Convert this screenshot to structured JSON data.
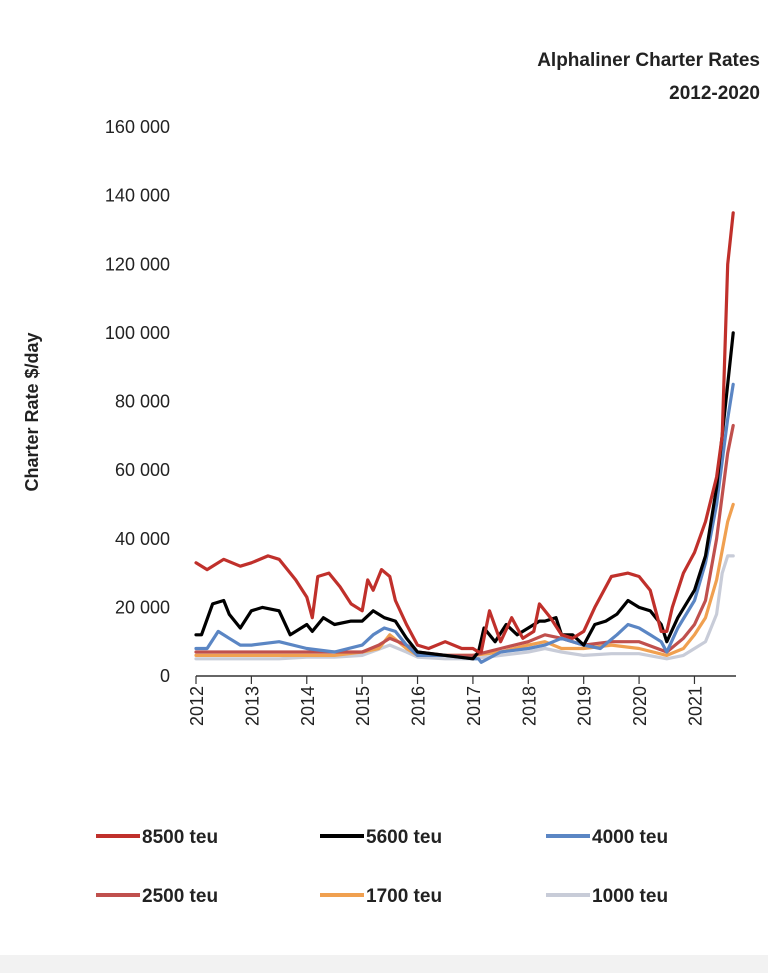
{
  "chart_data": {
    "type": "line",
    "title": [
      "Alphaliner Charter Rates",
      "2012-2020"
    ],
    "ylabel": "Charter Rate $/day",
    "xlabel": "",
    "ylim": [
      0,
      160000
    ],
    "xlim": [
      2012,
      2021.75
    ],
    "yticks": [
      {
        "value": 0,
        "label": "0"
      },
      {
        "value": 20000,
        "label": "20 000"
      },
      {
        "value": 40000,
        "label": "40 000"
      },
      {
        "value": 60000,
        "label": "60 000"
      },
      {
        "value": 80000,
        "label": "80 000"
      },
      {
        "value": 100000,
        "label": "100 000"
      },
      {
        "value": 120000,
        "label": "120 000"
      },
      {
        "value": 140000,
        "label": "140 000"
      },
      {
        "value": 160000,
        "label": "160 000"
      }
    ],
    "xticks": [
      "2012",
      "2013",
      "2014",
      "2015",
      "2016",
      "2017",
      "2018",
      "2019",
      "2020",
      "2021"
    ],
    "legend_placement": "bottom",
    "series": [
      {
        "name": "8500 teu",
        "color": "#c0302b",
        "x": [
          2012,
          2012.2,
          2012.5,
          2012.8,
          2013,
          2013.3,
          2013.5,
          2013.8,
          2014,
          2014.1,
          2014.2,
          2014.4,
          2014.6,
          2014.8,
          2015,
          2015.1,
          2015.2,
          2015.35,
          2015.5,
          2015.6,
          2015.8,
          2016,
          2016.2,
          2016.5,
          2016.8,
          2017,
          2017.1,
          2017.15,
          2017.3,
          2017.5,
          2017.7,
          2017.9,
          2018.1,
          2018.2,
          2018.4,
          2018.6,
          2018.8,
          2019,
          2019.2,
          2019.5,
          2019.8,
          2020,
          2020.2,
          2020.4,
          2020.5,
          2020.6,
          2020.8,
          2021,
          2021.2,
          2021.4,
          2021.5,
          2021.6,
          2021.7
        ],
        "values": [
          33000,
          31000,
          34000,
          32000,
          33000,
          35000,
          34000,
          28000,
          23000,
          17000,
          29000,
          30000,
          26000,
          21000,
          19000,
          28000,
          25000,
          31000,
          29000,
          22000,
          15000,
          9000,
          8000,
          10000,
          8000,
          8000,
          7000,
          7000,
          19000,
          10000,
          17000,
          11000,
          13000,
          21000,
          17000,
          12000,
          11000,
          13000,
          20000,
          29000,
          30000,
          29000,
          25000,
          13000,
          13000,
          20000,
          30000,
          36000,
          45000,
          58000,
          70000,
          120000,
          135000
        ]
      },
      {
        "name": "5600 teu",
        "color": "#000000",
        "x": [
          2012,
          2012.1,
          2012.3,
          2012.5,
          2012.6,
          2012.8,
          2013,
          2013.2,
          2013.5,
          2013.7,
          2014,
          2014.1,
          2014.3,
          2014.5,
          2014.8,
          2015,
          2015.2,
          2015.4,
          2015.6,
          2015.8,
          2016,
          2016.5,
          2017,
          2017.1,
          2017.2,
          2017.4,
          2017.6,
          2017.8,
          2018,
          2018.2,
          2018.3,
          2018.5,
          2018.6,
          2018.8,
          2019,
          2019.2,
          2019.4,
          2019.6,
          2019.8,
          2020,
          2020.2,
          2020.4,
          2020.5,
          2020.7,
          2021,
          2021.2,
          2021.4,
          2021.6,
          2021.7
        ],
        "values": [
          12000,
          12000,
          21000,
          22000,
          18000,
          14000,
          19000,
          20000,
          19000,
          12000,
          15000,
          13000,
          17000,
          15000,
          16000,
          16000,
          19000,
          17000,
          16000,
          11000,
          7000,
          6000,
          5000,
          7000,
          14000,
          10000,
          15000,
          12000,
          14000,
          16000,
          16000,
          17000,
          12000,
          12000,
          9000,
          15000,
          16000,
          18000,
          22000,
          20000,
          19000,
          15000,
          10000,
          17000,
          25000,
          35000,
          55000,
          85000,
          100000
        ]
      },
      {
        "name": "4000 teu",
        "color": "#5b86c4",
        "x": [
          2012,
          2012.2,
          2012.4,
          2012.6,
          2012.8,
          2013,
          2013.5,
          2014,
          2014.5,
          2015,
          2015.2,
          2015.4,
          2015.6,
          2015.8,
          2016,
          2016.5,
          2017,
          2017.1,
          2017.15,
          2017.5,
          2018,
          2018.3,
          2018.6,
          2019,
          2019.3,
          2019.6,
          2019.8,
          2020,
          2020.2,
          2020.4,
          2020.5,
          2020.7,
          2021,
          2021.2,
          2021.4,
          2021.6,
          2021.7
        ],
        "values": [
          8000,
          8000,
          13000,
          11000,
          9000,
          9000,
          10000,
          8000,
          7000,
          9000,
          12000,
          14000,
          13000,
          9000,
          6000,
          6000,
          5000,
          5000,
          4000,
          7000,
          8000,
          9000,
          11000,
          9000,
          8000,
          12000,
          15000,
          14000,
          12000,
          10000,
          7000,
          14000,
          22000,
          33000,
          50000,
          75000,
          85000
        ]
      },
      {
        "name": "2500 teu",
        "color": "#c0504d",
        "x": [
          2012,
          2012.5,
          2013,
          2013.5,
          2014,
          2014.5,
          2015,
          2015.3,
          2015.5,
          2015.8,
          2016,
          2016.5,
          2017,
          2017.5,
          2018,
          2018.3,
          2018.6,
          2019,
          2019.5,
          2020,
          2020.5,
          2020.8,
          2021,
          2021.2,
          2021.4,
          2021.6,
          2021.7
        ],
        "values": [
          7000,
          7000,
          7000,
          7000,
          7000,
          7000,
          7000,
          9000,
          11000,
          9000,
          7000,
          6000,
          6000,
          8000,
          10000,
          12000,
          11000,
          9000,
          10000,
          10000,
          7000,
          11000,
          15000,
          22000,
          40000,
          65000,
          73000
        ]
      },
      {
        "name": "1700 teu",
        "color": "#f0a050",
        "x": [
          2012,
          2012.5,
          2013,
          2013.5,
          2014,
          2014.5,
          2015,
          2015.3,
          2015.5,
          2015.8,
          2016,
          2016.5,
          2017,
          2017.5,
          2018,
          2018.3,
          2018.6,
          2019,
          2019.5,
          2020,
          2020.5,
          2020.8,
          2021,
          2021.2,
          2021.4,
          2021.6,
          2021.7
        ],
        "values": [
          6000,
          6000,
          6000,
          6000,
          6000,
          6000,
          7000,
          8000,
          12000,
          8000,
          6000,
          6000,
          6000,
          7000,
          9000,
          10000,
          8000,
          8000,
          9000,
          8000,
          6000,
          8000,
          12000,
          17000,
          28000,
          45000,
          50000
        ]
      },
      {
        "name": "1000 teu",
        "color": "#c8ccd8",
        "x": [
          2012,
          2012.5,
          2013,
          2013.5,
          2014,
          2014.5,
          2015,
          2015.5,
          2015.8,
          2016,
          2016.5,
          2017,
          2017.5,
          2018,
          2018.3,
          2018.6,
          2019,
          2019.5,
          2020,
          2020.5,
          2020.8,
          2021,
          2021.2,
          2021.4,
          2021.5,
          2021.6,
          2021.7
        ],
        "values": [
          5000,
          5000,
          5000,
          5000,
          5500,
          5500,
          6000,
          9000,
          7000,
          5500,
          5000,
          5000,
          6000,
          7000,
          8000,
          7000,
          6000,
          6500,
          6500,
          5000,
          6000,
          8000,
          10000,
          18000,
          30000,
          35000,
          35000
        ]
      }
    ]
  }
}
